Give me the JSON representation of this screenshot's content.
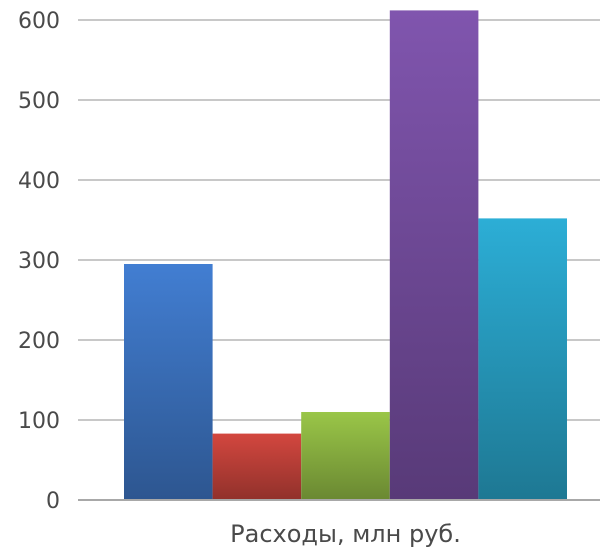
{
  "chart_data": {
    "type": "bar",
    "categories": [
      "Расходы, млн руб."
    ],
    "series": [
      {
        "values": [
          295
        ],
        "color": "#3f78c8"
      },
      {
        "values": [
          83
        ],
        "color": "#c9443c"
      },
      {
        "values": [
          110
        ],
        "color": "#93bd45"
      },
      {
        "values": [
          612
        ],
        "color": "#7a51a6"
      },
      {
        "values": [
          352
        ],
        "color": "#2aa6cc"
      }
    ],
    "title": "",
    "xlabel": "Расходы, млн руб.",
    "ylabel": "",
    "ylim": [
      0,
      600
    ],
    "yticks": [
      "0",
      "100",
      "200",
      "300",
      "400",
      "500",
      "600"
    ],
    "grid": true,
    "legend": "none"
  }
}
